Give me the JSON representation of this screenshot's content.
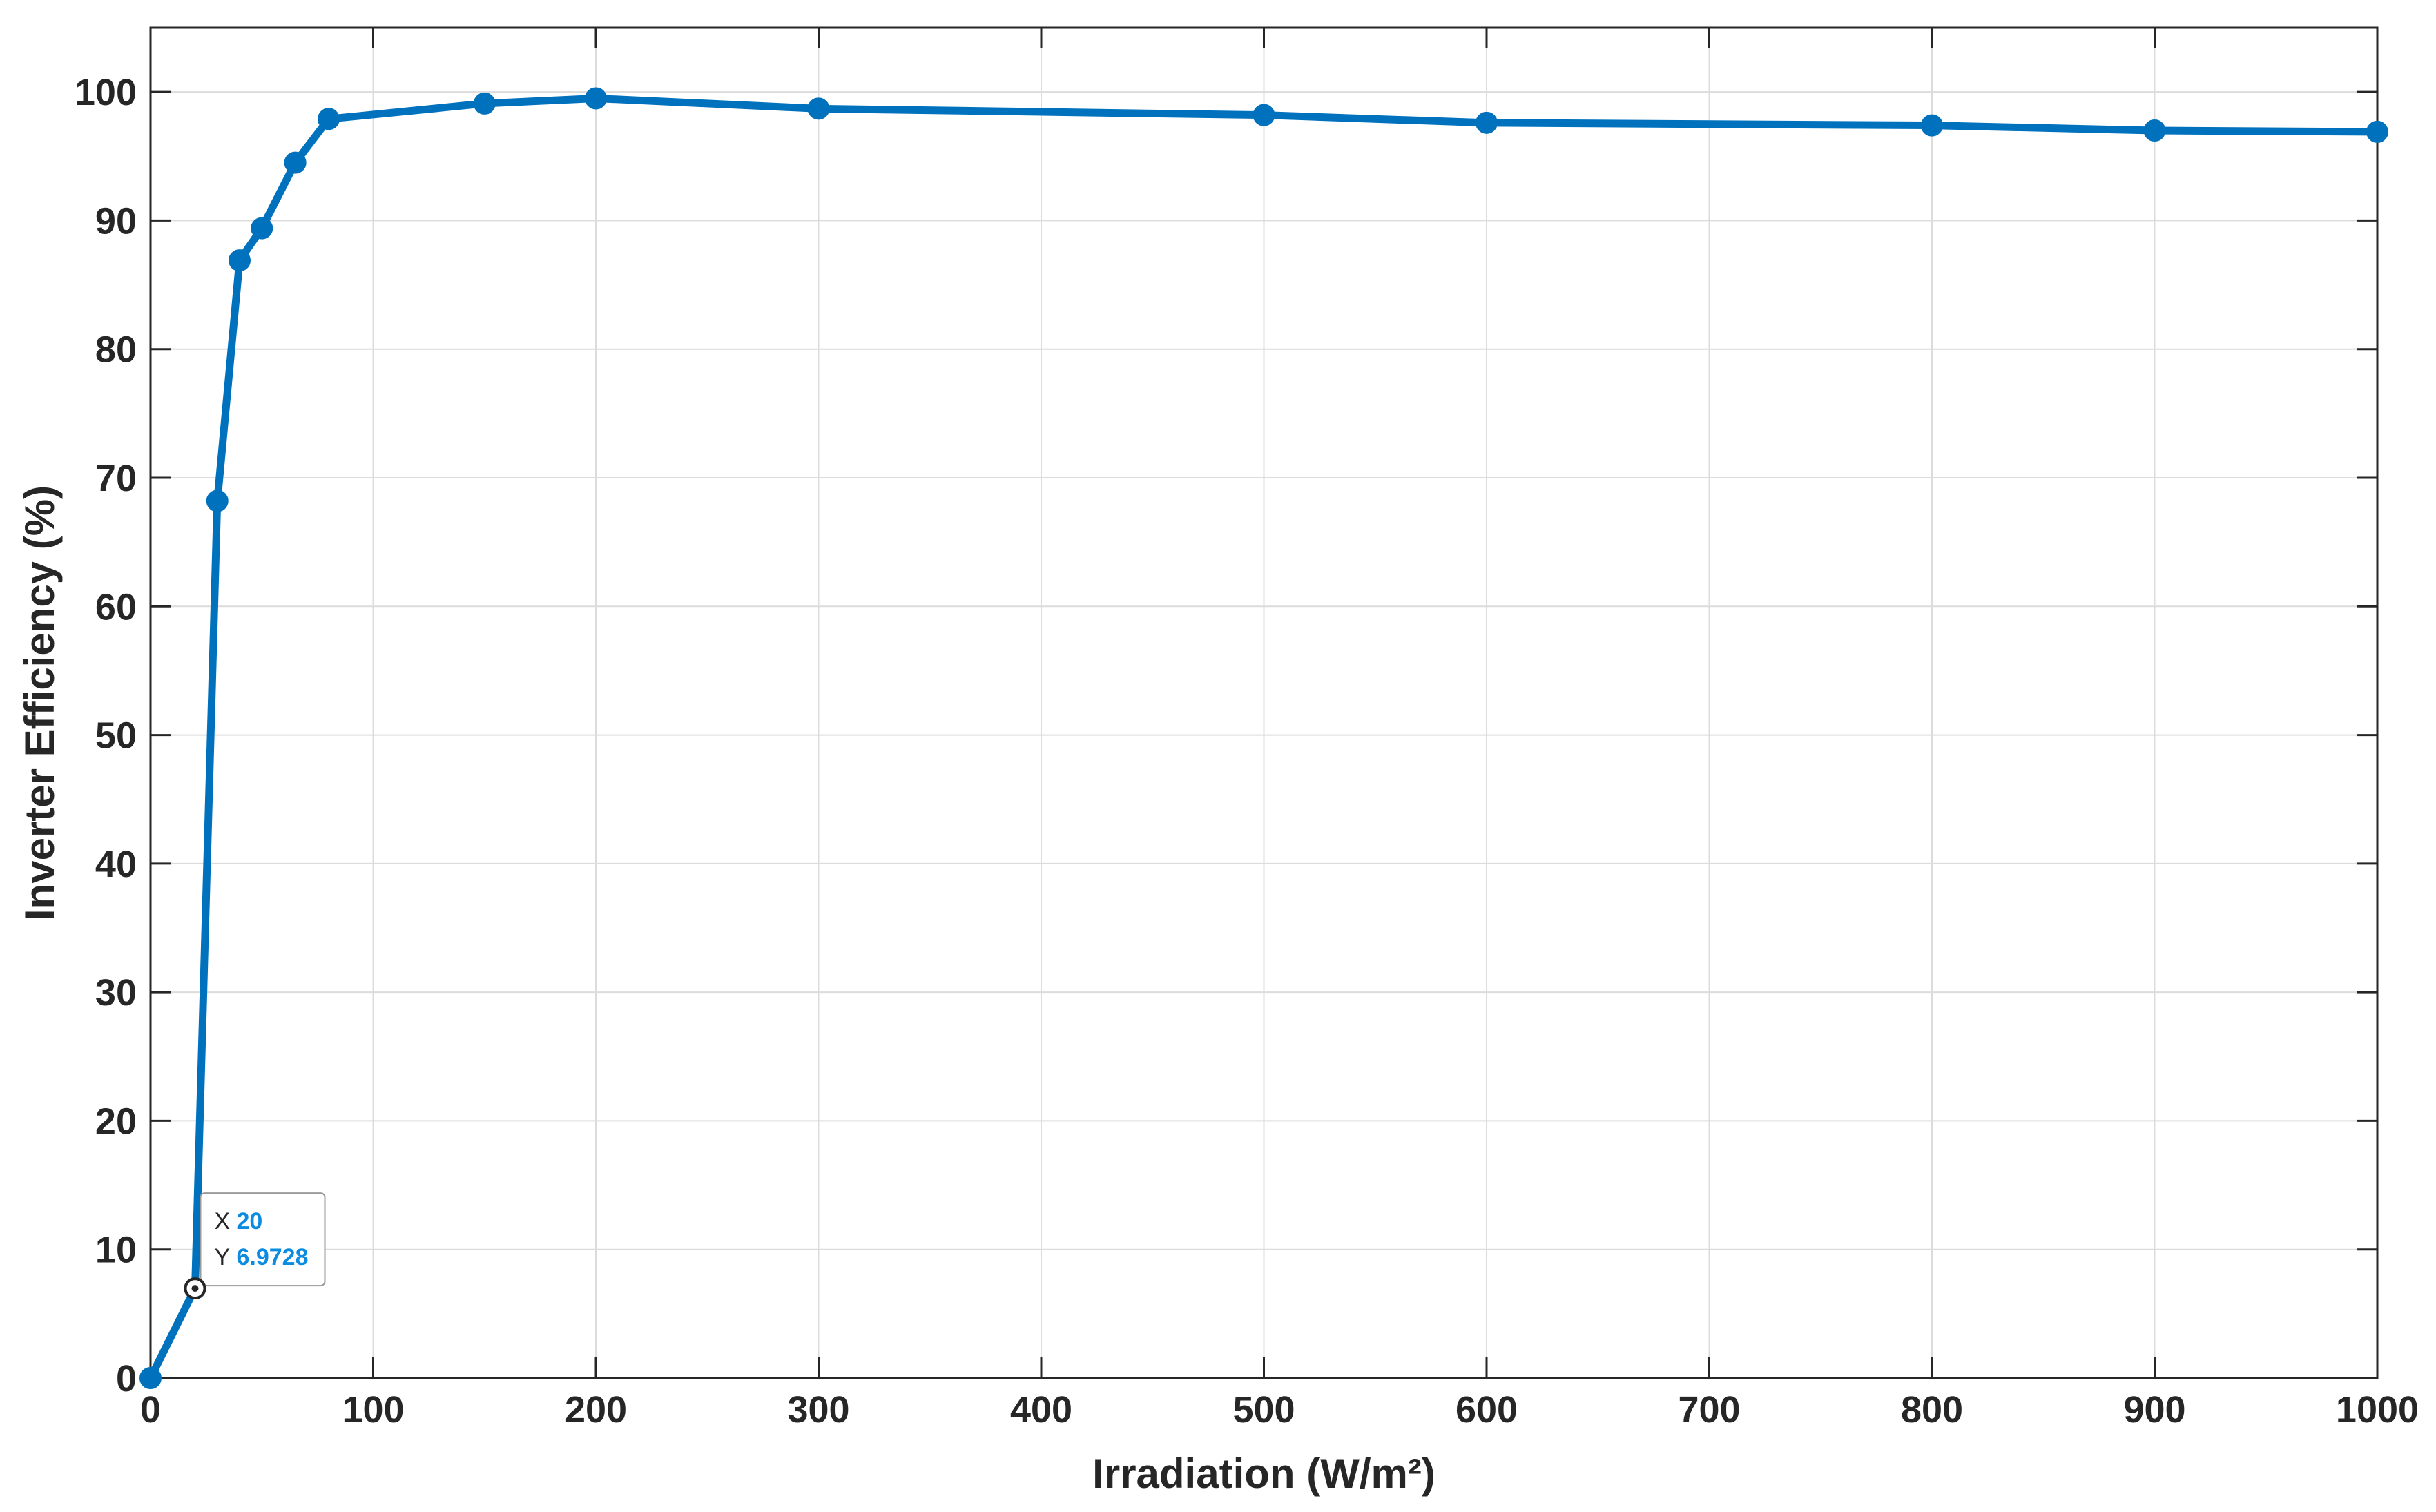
{
  "chart_data": {
    "type": "line",
    "xlabel": "Irradiation (W/m²)",
    "ylabel": "Inverter Efficiency (%)",
    "xlim": [
      0,
      1000
    ],
    "ylim": [
      0,
      105
    ],
    "xticks": [
      0,
      100,
      200,
      300,
      400,
      500,
      600,
      700,
      800,
      900,
      1000
    ],
    "yticks": [
      0,
      10,
      20,
      30,
      40,
      50,
      60,
      70,
      80,
      90,
      100
    ],
    "grid": true,
    "series": [
      {
        "color": "#0072BD",
        "x": [
          0,
          20,
          30,
          40,
          50,
          65,
          80,
          150,
          200,
          300,
          500,
          600,
          800,
          900,
          1000
        ],
        "y": [
          0,
          6.9728,
          68.2,
          86.9,
          89.4,
          94.5,
          97.9,
          99.1,
          99.5,
          98.7,
          98.2,
          97.6,
          97.4,
          97.0,
          96.9
        ]
      }
    ],
    "datatip": {
      "x_key": "X",
      "x_value": "20",
      "y_key": "Y",
      "y_value": "6.9728",
      "point_x": 20,
      "point_y": 6.9728
    }
  }
}
